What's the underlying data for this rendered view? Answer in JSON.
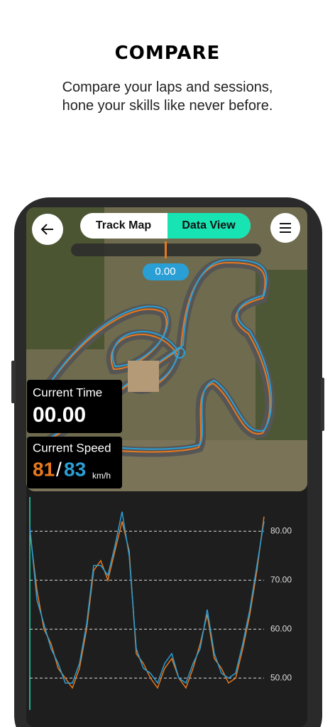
{
  "header": {
    "title": "COMPARE",
    "subtitle_lines": [
      "Compare your laps and sessions,",
      "hone your skills like never before."
    ]
  },
  "tabs": [
    "Track Map",
    "Data View"
  ],
  "slider_value": "0.00",
  "current_time": {
    "label": "Current Time",
    "value": "00.00"
  },
  "current_speed": {
    "label": "Current Speed",
    "lap_a": "81",
    "separator": "/",
    "lap_b": "83",
    "unit": "km/h"
  },
  "chart_data": {
    "type": "line",
    "ylim": [
      43.5,
      87
    ],
    "yticks": [
      {
        "value": 50,
        "label": "50.00"
      },
      {
        "value": 60,
        "label": "60.00"
      },
      {
        "value": 70,
        "label": "70.00"
      },
      {
        "value": 80,
        "label": "80.00"
      }
    ],
    "grid": true,
    "series": [
      {
        "color": "#e8781e",
        "values": [
          80,
          68,
          60,
          57,
          52,
          50,
          48,
          52,
          60,
          72,
          74,
          70,
          76,
          82,
          76,
          55,
          53,
          50,
          48,
          52,
          54,
          50,
          48,
          52,
          57,
          63,
          54,
          52,
          49,
          50,
          56,
          63,
          72,
          83
        ]
      },
      {
        "color": "#2a9fd6",
        "values": [
          81,
          66,
          61,
          56,
          53,
          49,
          49,
          53,
          61,
          73,
          73,
          71,
          77,
          84,
          75,
          56,
          52,
          51,
          49,
          53,
          55,
          50,
          49,
          53,
          56,
          64,
          55,
          51,
          50,
          51,
          57,
          64,
          73,
          82
        ]
      }
    ]
  }
}
